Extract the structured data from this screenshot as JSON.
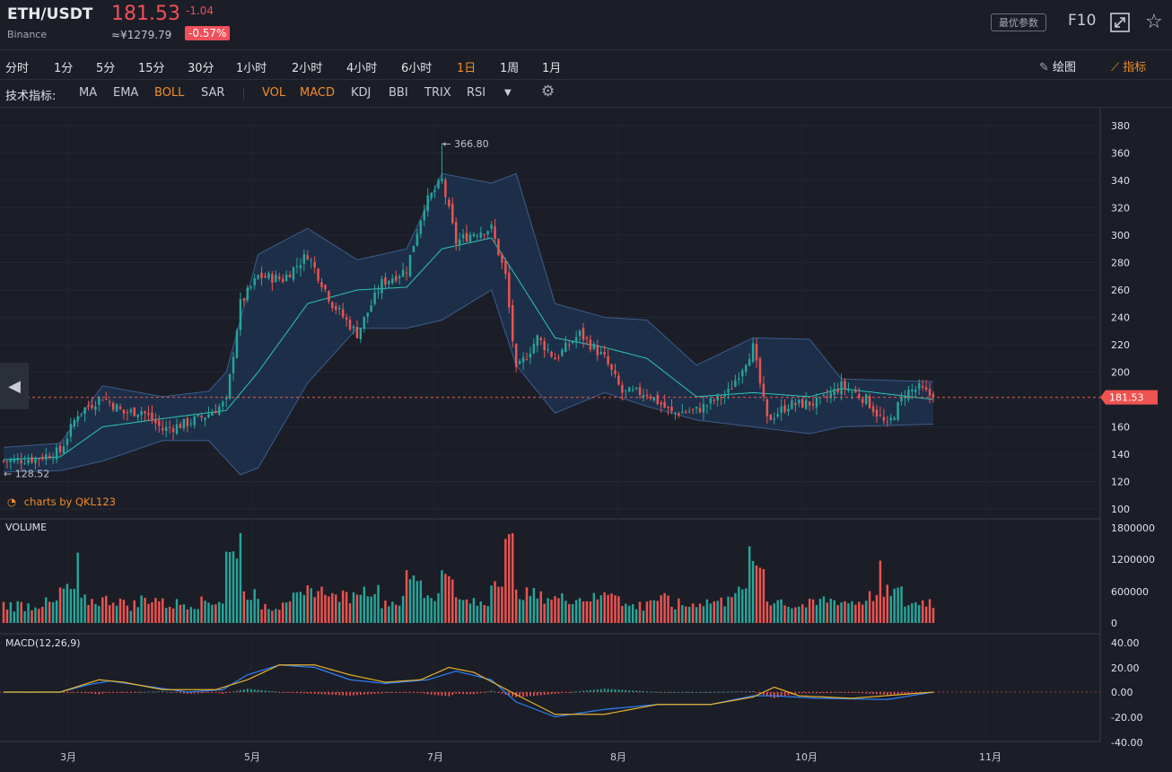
{
  "header": {
    "symbol": "ETH/USDT",
    "exchange": "Binance",
    "price": "181.53",
    "change": "-1.04",
    "cny_price": "≈¥1279.79",
    "change_pct": "-0.57%",
    "best_params": "最优参数",
    "f10": "F10"
  },
  "timeframes": [
    "分时",
    "1分",
    "5分",
    "15分",
    "30分",
    "1小时",
    "2小时",
    "4小时",
    "6小时",
    "1日",
    "1周",
    "1月"
  ],
  "active_timeframe": "1日",
  "toolbar": {
    "draw": "绘图",
    "indicators": "指标"
  },
  "indicator_bar": {
    "label": "技术指标:",
    "main": [
      "MA",
      "EMA",
      "BOLL",
      "SAR"
    ],
    "sub": [
      "VOL",
      "MACD",
      "KDJ",
      "BBI",
      "TRIX",
      "RSI"
    ],
    "active": [
      "BOLL",
      "VOL",
      "MACD"
    ]
  },
  "icons": {
    "fullscreen": "fullscreen-icon",
    "favorite": "star-icon",
    "draw": "pencil-icon",
    "indicator": "line-chart-icon",
    "settings": "gear-icon",
    "dropdown": "chevron-down-icon",
    "scroll_left": "chevron-left-icon"
  },
  "watermark": "charts by QKL123",
  "colors": {
    "up": "#26a69a",
    "down": "#ef5350",
    "boll_band": "#3b5c8e",
    "boll_mid": "#2ec4b6",
    "dif": "#2b83ff",
    "dea": "#e9b12a",
    "price_line": "#ef5350",
    "accent": "#f08c2a"
  },
  "chart_data": [
    {
      "type": "candlestick",
      "title": "",
      "indicator": "BOLL",
      "x_labels": [
        "3月",
        "5月",
        "7月",
        "8月",
        "10月",
        "11月"
      ],
      "y_ticks": [
        100,
        120,
        140,
        160,
        180,
        200,
        220,
        240,
        260,
        280,
        300,
        320,
        340,
        360,
        380
      ],
      "ylim": [
        100,
        380
      ],
      "last_price": 181.53,
      "last_price_label": "181.53",
      "high_annotation": "← 366.80",
      "low_annotation": "← 128.52",
      "close_series": [
        {
          "t": 0,
          "v": 135
        },
        {
          "t": 9,
          "v": 137
        },
        {
          "t": 16,
          "v": 142
        },
        {
          "t": 21,
          "v": 170
        },
        {
          "t": 28,
          "v": 182
        },
        {
          "t": 34,
          "v": 170
        },
        {
          "t": 39,
          "v": 172
        },
        {
          "t": 45,
          "v": 158
        },
        {
          "t": 51,
          "v": 162
        },
        {
          "t": 57,
          "v": 168
        },
        {
          "t": 63,
          "v": 178
        },
        {
          "t": 67,
          "v": 250
        },
        {
          "t": 72,
          "v": 270
        },
        {
          "t": 79,
          "v": 268
        },
        {
          "t": 86,
          "v": 286
        },
        {
          "t": 93,
          "v": 250
        },
        {
          "t": 100,
          "v": 228
        },
        {
          "t": 107,
          "v": 265
        },
        {
          "t": 114,
          "v": 275
        },
        {
          "t": 119,
          "v": 322
        },
        {
          "t": 124,
          "v": 340
        },
        {
          "t": 128,
          "v": 295
        },
        {
          "t": 133,
          "v": 302
        },
        {
          "t": 138,
          "v": 305
        },
        {
          "t": 142,
          "v": 270
        },
        {
          "t": 145,
          "v": 200
        },
        {
          "t": 151,
          "v": 225
        },
        {
          "t": 156,
          "v": 210
        },
        {
          "t": 163,
          "v": 228
        },
        {
          "t": 170,
          "v": 210
        },
        {
          "t": 175,
          "v": 185
        },
        {
          "t": 182,
          "v": 185
        },
        {
          "t": 189,
          "v": 170
        },
        {
          "t": 196,
          "v": 172
        },
        {
          "t": 205,
          "v": 185
        },
        {
          "t": 212,
          "v": 218
        },
        {
          "t": 216,
          "v": 165
        },
        {
          "t": 222,
          "v": 176
        },
        {
          "t": 231,
          "v": 178
        },
        {
          "t": 237,
          "v": 190
        },
        {
          "t": 244,
          "v": 180
        },
        {
          "t": 250,
          "v": 160
        },
        {
          "t": 255,
          "v": 185
        },
        {
          "t": 259,
          "v": 188
        },
        {
          "t": 263,
          "v": 181.5
        }
      ],
      "boll_upper_series": [
        {
          "t": 0,
          "v": 145
        },
        {
          "t": 16,
          "v": 148
        },
        {
          "t": 28,
          "v": 190
        },
        {
          "t": 45,
          "v": 182
        },
        {
          "t": 58,
          "v": 186
        },
        {
          "t": 63,
          "v": 200
        },
        {
          "t": 72,
          "v": 286
        },
        {
          "t": 86,
          "v": 305
        },
        {
          "t": 100,
          "v": 282
        },
        {
          "t": 114,
          "v": 290
        },
        {
          "t": 124,
          "v": 345
        },
        {
          "t": 138,
          "v": 338
        },
        {
          "t": 145,
          "v": 345
        },
        {
          "t": 156,
          "v": 250
        },
        {
          "t": 170,
          "v": 240
        },
        {
          "t": 182,
          "v": 238
        },
        {
          "t": 196,
          "v": 205
        },
        {
          "t": 212,
          "v": 225
        },
        {
          "t": 228,
          "v": 224
        },
        {
          "t": 237,
          "v": 195
        },
        {
          "t": 263,
          "v": 193
        }
      ],
      "boll_mid_series": [
        {
          "t": 0,
          "v": 136
        },
        {
          "t": 16,
          "v": 138
        },
        {
          "t": 28,
          "v": 160
        },
        {
          "t": 45,
          "v": 166
        },
        {
          "t": 63,
          "v": 172
        },
        {
          "t": 72,
          "v": 200
        },
        {
          "t": 86,
          "v": 250
        },
        {
          "t": 100,
          "v": 260
        },
        {
          "t": 114,
          "v": 262
        },
        {
          "t": 124,
          "v": 290
        },
        {
          "t": 138,
          "v": 298
        },
        {
          "t": 145,
          "v": 270
        },
        {
          "t": 156,
          "v": 225
        },
        {
          "t": 170,
          "v": 218
        },
        {
          "t": 182,
          "v": 210
        },
        {
          "t": 196,
          "v": 182
        },
        {
          "t": 212,
          "v": 185
        },
        {
          "t": 228,
          "v": 182
        },
        {
          "t": 237,
          "v": 188
        },
        {
          "t": 263,
          "v": 180
        }
      ],
      "boll_lower_series": [
        {
          "t": 0,
          "v": 127
        },
        {
          "t": 16,
          "v": 128
        },
        {
          "t": 28,
          "v": 135
        },
        {
          "t": 45,
          "v": 150
        },
        {
          "t": 58,
          "v": 150
        },
        {
          "t": 67,
          "v": 125
        },
        {
          "t": 72,
          "v": 130
        },
        {
          "t": 86,
          "v": 192
        },
        {
          "t": 100,
          "v": 232
        },
        {
          "t": 114,
          "v": 232
        },
        {
          "t": 124,
          "v": 238
        },
        {
          "t": 138,
          "v": 260
        },
        {
          "t": 145,
          "v": 205
        },
        {
          "t": 156,
          "v": 170
        },
        {
          "t": 170,
          "v": 185
        },
        {
          "t": 182,
          "v": 175
        },
        {
          "t": 196,
          "v": 165
        },
        {
          "t": 212,
          "v": 160
        },
        {
          "t": 228,
          "v": 155
        },
        {
          "t": 237,
          "v": 160
        },
        {
          "t": 263,
          "v": 162
        }
      ]
    },
    {
      "type": "bar",
      "title": "VOLUME",
      "y_ticks": [
        "1800000",
        "1200000",
        "600000",
        "0"
      ],
      "ylim": [
        0,
        1800000
      ],
      "up_color": "#26a69a",
      "down_color": "#ef5350"
    },
    {
      "type": "line",
      "title": "MACD(12,26,9)",
      "y_ticks": [
        "40.00",
        "20.00",
        "0.00",
        "-20.00",
        "-40.00"
      ],
      "ylim": [
        -40,
        40
      ],
      "dif_series": [
        {
          "t": 0,
          "v": 0
        },
        {
          "t": 16,
          "v": 0
        },
        {
          "t": 24,
          "v": 6
        },
        {
          "t": 30,
          "v": 9
        },
        {
          "t": 40,
          "v": 5
        },
        {
          "t": 52,
          "v": 0
        },
        {
          "t": 62,
          "v": 2
        },
        {
          "t": 69,
          "v": 14
        },
        {
          "t": 78,
          "v": 22
        },
        {
          "t": 88,
          "v": 20
        },
        {
          "t": 98,
          "v": 10
        },
        {
          "t": 108,
          "v": 7
        },
        {
          "t": 120,
          "v": 10
        },
        {
          "t": 128,
          "v": 17
        },
        {
          "t": 138,
          "v": 10
        },
        {
          "t": 145,
          "v": -8
        },
        {
          "t": 156,
          "v": -20
        },
        {
          "t": 170,
          "v": -14
        },
        {
          "t": 185,
          "v": -10
        },
        {
          "t": 200,
          "v": -10
        },
        {
          "t": 212,
          "v": -3
        },
        {
          "t": 218,
          "v": -3
        },
        {
          "t": 230,
          "v": -5
        },
        {
          "t": 250,
          "v": -6
        },
        {
          "t": 263,
          "v": 0
        }
      ],
      "dea_series": [
        {
          "t": 0,
          "v": 0
        },
        {
          "t": 16,
          "v": 0
        },
        {
          "t": 27,
          "v": 10
        },
        {
          "t": 34,
          "v": 8
        },
        {
          "t": 45,
          "v": 2
        },
        {
          "t": 60,
          "v": 2
        },
        {
          "t": 69,
          "v": 10
        },
        {
          "t": 78,
          "v": 22
        },
        {
          "t": 88,
          "v": 22
        },
        {
          "t": 98,
          "v": 14
        },
        {
          "t": 108,
          "v": 8
        },
        {
          "t": 118,
          "v": 10
        },
        {
          "t": 126,
          "v": 20
        },
        {
          "t": 133,
          "v": 16
        },
        {
          "t": 145,
          "v": -2
        },
        {
          "t": 156,
          "v": -18
        },
        {
          "t": 170,
          "v": -18
        },
        {
          "t": 185,
          "v": -10
        },
        {
          "t": 200,
          "v": -10
        },
        {
          "t": 212,
          "v": -4
        },
        {
          "t": 218,
          "v": 4
        },
        {
          "t": 225,
          "v": -3
        },
        {
          "t": 240,
          "v": -5
        },
        {
          "t": 263,
          "v": 0
        }
      ]
    }
  ]
}
